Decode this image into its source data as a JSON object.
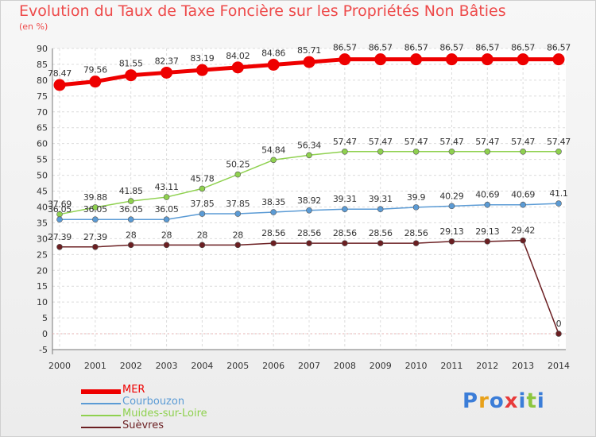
{
  "chart_data": {
    "type": "line",
    "title": "Evolution du Taux de Taxe Foncière sur les Propriétés Non Bâties",
    "subtitle": "(en %)",
    "x": [
      "2000",
      "2001",
      "2002",
      "2003",
      "2004",
      "2005",
      "2006",
      "2007",
      "2008",
      "2009",
      "2010",
      "2011",
      "2012",
      "2013",
      "2014"
    ],
    "ylim": [
      -5,
      90
    ],
    "yticks": [
      -5,
      0,
      5,
      10,
      15,
      20,
      25,
      30,
      35,
      40,
      45,
      50,
      55,
      60,
      65,
      70,
      75,
      80,
      85,
      90
    ],
    "grid": true,
    "series": [
      {
        "name": "MER",
        "color": "#ee0000",
        "width": 5,
        "values": [
          78.47,
          79.56,
          81.55,
          82.37,
          83.19,
          84.02,
          84.86,
          85.71,
          86.57,
          86.57,
          86.57,
          86.57,
          86.57,
          86.57,
          86.57
        ],
        "labels": [
          "78.47",
          "79.56",
          "81.55",
          "82.37",
          "83.19",
          "84.02",
          "84.86",
          "85.71",
          "86.57",
          "86.57",
          "86.57",
          "86.57",
          "86.57",
          "86.57",
          "86.57"
        ]
      },
      {
        "name": "Courbouzon",
        "color": "#5b9bd5",
        "width": 1.5,
        "values": [
          36.05,
          36.05,
          36.05,
          36.05,
          37.85,
          37.85,
          38.35,
          38.92,
          39.31,
          39.31,
          39.9,
          40.29,
          40.69,
          40.69,
          41.1
        ],
        "labels": [
          "36.05",
          "36.05",
          "36.05",
          "36.05",
          "37.85",
          "37.85",
          "38.35",
          "38.92",
          "39.31",
          "39.31",
          "39.9",
          "40.29",
          "40.69",
          "40.69",
          "41.1"
        ]
      },
      {
        "name": "Muides-sur-Loire",
        "color": "#8fd14f",
        "width": 1.5,
        "values": [
          37.69,
          39.88,
          41.85,
          43.11,
          45.78,
          50.25,
          54.84,
          56.34,
          57.47,
          57.47,
          57.47,
          57.47,
          57.47,
          57.47,
          57.47
        ],
        "labels": [
          "37.69",
          "39.88",
          "41.85",
          "43.11",
          "45.78",
          "50.25",
          "54.84",
          "56.34",
          "57.47",
          "57.47",
          "57.47",
          "57.47",
          "57.47",
          "57.47",
          "57.47"
        ]
      },
      {
        "name": "Suèvres",
        "color": "#6b1f22",
        "width": 1.5,
        "values": [
          27.39,
          27.39,
          28,
          28,
          28,
          28,
          28.56,
          28.56,
          28.56,
          28.56,
          28.56,
          29.13,
          29.13,
          29.42,
          0
        ],
        "labels": [
          "27.39",
          "27.39",
          "28",
          "28",
          "28",
          "28",
          "28.56",
          "28.56",
          "28.56",
          "28.56",
          "28.56",
          "29.13",
          "29.13",
          "29.42",
          "0"
        ]
      }
    ]
  },
  "logo": {
    "text": "Proxiti",
    "colors": [
      "#3b7dd8",
      "#e8a11a",
      "#3b7dd8",
      "#e83a3a",
      "#3b7dd8",
      "#8cc63f",
      "#3b7dd8"
    ]
  }
}
